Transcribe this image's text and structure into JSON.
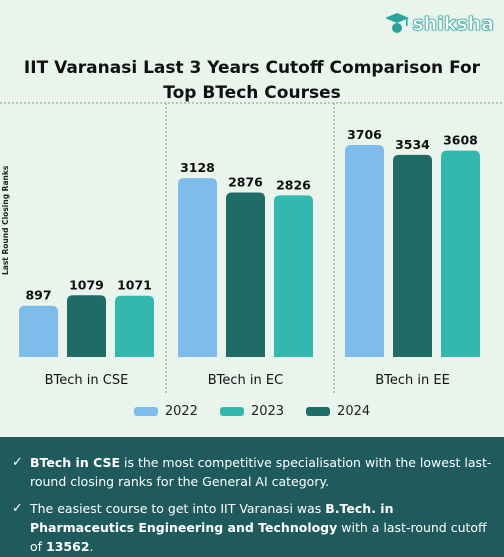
{
  "brand": {
    "name": "shiksha"
  },
  "chart_data": {
    "type": "bar",
    "title_line1": "IIT Varanasi  Last 3 Years Cutoff Comparison  For",
    "title_line2": "Top BTech Courses",
    "ylabel": "Last Round Closing Ranks",
    "xlabel": "",
    "categories": [
      "BTech in CSE",
      "BTech in EC",
      "BTech in EE"
    ],
    "bar_order": [
      "2022",
      "2024",
      "2023"
    ],
    "series": [
      {
        "name": "2022",
        "color": "#7ebcec",
        "values": [
          897,
          3128,
          3706
        ]
      },
      {
        "name": "2024",
        "color": "#1f6b66",
        "values": [
          1079,
          2876,
          3534
        ]
      },
      {
        "name": "2023",
        "color": "#32b8ae",
        "values": [
          1071,
          2826,
          3608
        ]
      }
    ],
    "legend": [
      {
        "label": "2022",
        "color": "#7ebcec"
      },
      {
        "label": "2023",
        "color": "#32b8ae"
      },
      {
        "label": "2024",
        "color": "#1f6b66"
      }
    ],
    "legend_position": "bottom",
    "ylim": [
      0,
      3706
    ],
    "grid": false
  },
  "notes": [
    {
      "parts": [
        {
          "text": "BTech in CSE",
          "bold": true
        },
        {
          "text": " is the most competitive specialisation with the lowest last-round closing ranks for the General AI category.",
          "bold": false
        }
      ]
    },
    {
      "parts": [
        {
          "text": "The easiest course to get into IIT Varanasi was ",
          "bold": false
        },
        {
          "text": "B.Tech. in Pharmaceutics Engineering and Technology",
          "bold": true
        },
        {
          "text": " with a last-round cutoff of ",
          "bold": false
        },
        {
          "text": "13562",
          "bold": true
        },
        {
          "text": ".",
          "bold": false
        }
      ]
    }
  ]
}
